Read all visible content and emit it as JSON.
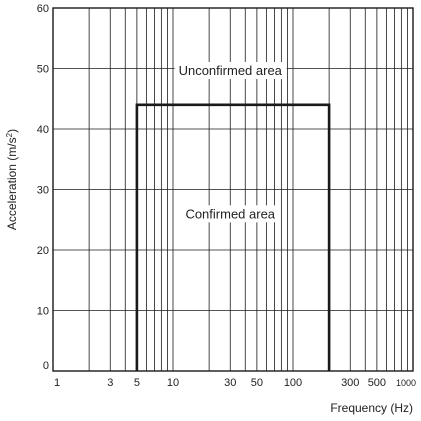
{
  "chart_data": {
    "type": "line",
    "x_scale": "log",
    "xlabel": "Frequency (Hz)",
    "ylabel": "Acceleration (m/s",
    "ylabel_superscript": "2",
    "ylabel_suffix": ")",
    "xlim": [
      1,
      1000
    ],
    "ylim": [
      0,
      60
    ],
    "x_ticks": [
      {
        "value": 1,
        "label": "1"
      },
      {
        "value": 3,
        "label": "3"
      },
      {
        "value": 5,
        "label": "5"
      },
      {
        "value": 10,
        "label": "10"
      },
      {
        "value": 30,
        "label": "30"
      },
      {
        "value": 50,
        "label": "50"
      },
      {
        "value": 100,
        "label": "100"
      },
      {
        "value": 300,
        "label": "300"
      },
      {
        "value": 500,
        "label": "500"
      },
      {
        "value": 1000,
        "label": "1000"
      }
    ],
    "y_ticks": [
      {
        "value": 0,
        "label": "0"
      },
      {
        "value": 10,
        "label": "10"
      },
      {
        "value": 20,
        "label": "20"
      },
      {
        "value": 30,
        "label": "30"
      },
      {
        "value": 40,
        "label": "40"
      },
      {
        "value": 50,
        "label": "50"
      },
      {
        "value": 60,
        "label": "60"
      }
    ],
    "x_grid": [
      2,
      3,
      4,
      5,
      6,
      7,
      8,
      9,
      10,
      20,
      30,
      40,
      50,
      60,
      70,
      80,
      90,
      100,
      200,
      300,
      400,
      500,
      600,
      700,
      800,
      900
    ],
    "grid": true,
    "series": [
      {
        "x": [
          5,
          5,
          200,
          200
        ],
        "y": [
          0,
          44,
          44,
          0
        ]
      }
    ],
    "annotations": [
      {
        "text": "Unconfirmed area",
        "x": 30,
        "y": 49.5
      },
      {
        "text": "Confirmed area",
        "x": 30,
        "y": 25.8
      }
    ]
  }
}
